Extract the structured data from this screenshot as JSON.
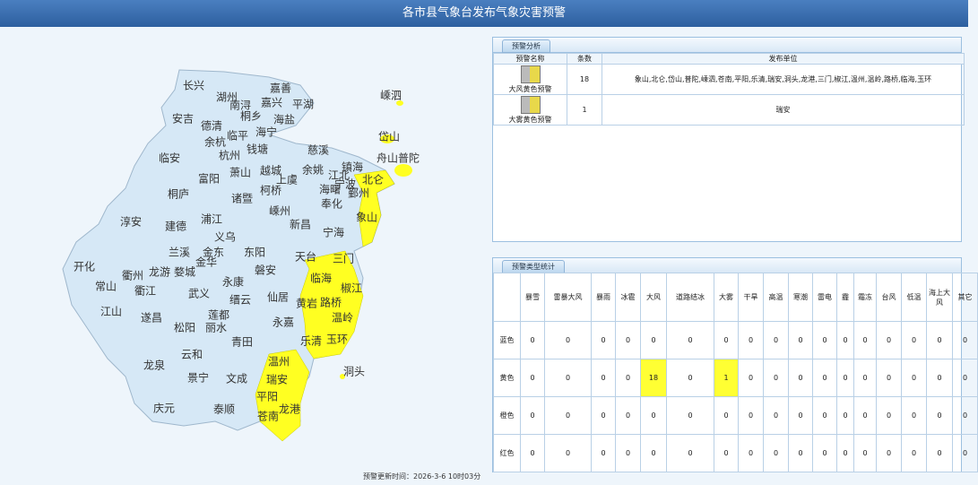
{
  "header": {
    "title": "各市县气象台发布气象灾害预警"
  },
  "map": {
    "labels": [
      "长兴",
      "湖州",
      "嘉善",
      "南浔",
      "嘉兴",
      "平湖",
      "桐乡",
      "海盐",
      "安吉",
      "德清",
      "海宁",
      "余杭",
      "临平",
      "杭州",
      "钱塘",
      "慈溪",
      "嵊泗",
      "岱山",
      "舟山普陀",
      "临安",
      "富阳",
      "萧山",
      "越城",
      "余姚",
      "镇海",
      "江北",
      "宁波",
      "鄞州",
      "北仑",
      "海曙",
      "奉化",
      "上虞",
      "柯桥",
      "诸暨",
      "桐庐",
      "淳安",
      "建德",
      "浦江",
      "嵊州",
      "新昌",
      "象山",
      "宁海",
      "兰溪",
      "义乌",
      "金东",
      "金华",
      "东阳",
      "龙游",
      "婺城",
      "开化",
      "衢州",
      "常山",
      "衢江",
      "武义",
      "永康",
      "磐安",
      "天台",
      "三门",
      "临海",
      "椒江",
      "路桥",
      "缙云",
      "仙居",
      "黄岩",
      "温岭",
      "江山",
      "遂昌",
      "莲都",
      "丽水",
      "松阳",
      "永嘉",
      "乐清",
      "玉环",
      "青田",
      "云和",
      "龙泉",
      "洞头",
      "温州",
      "瑞安",
      "景宁",
      "文成",
      "平阳",
      "龙港",
      "庆元",
      "泰顺",
      "苍南"
    ]
  },
  "analysis": {
    "tab": "预警分析",
    "headers": [
      "预警名称",
      "条数",
      "发布单位"
    ],
    "rows": [
      {
        "name": "大风黄色预警",
        "count": 18,
        "units": "象山,北仑,岱山,普陀,嵊泗,苍南,平阳,乐清,瑞安,洞头,龙港,三门,椒江,温州,温岭,路桥,临海,玉环"
      },
      {
        "name": "大雾黄色预警",
        "count": 1,
        "units": "瑞安"
      }
    ]
  },
  "stats": {
    "tab": "预警类型统计",
    "headers": [
      "暴雪",
      "雷暴大风",
      "暴雨",
      "冰雹",
      "大风",
      "道路结冰",
      "大雾",
      "干旱",
      "高温",
      "寒潮",
      "雷电",
      "霾",
      "霜冻",
      "台风",
      "低温",
      "海上大风",
      "其它"
    ],
    "rows": [
      {
        "label": "蓝色",
        "values": [
          0,
          0,
          0,
          0,
          0,
          0,
          0,
          0,
          0,
          0,
          0,
          0,
          0,
          0,
          0,
          0,
          0
        ]
      },
      {
        "label": "黄色",
        "values": [
          0,
          0,
          0,
          0,
          18,
          0,
          1,
          0,
          0,
          0,
          0,
          0,
          0,
          0,
          0,
          0,
          0
        ]
      },
      {
        "label": "橙色",
        "values": [
          0,
          0,
          0,
          0,
          0,
          0,
          0,
          0,
          0,
          0,
          0,
          0,
          0,
          0,
          0,
          0,
          0
        ]
      },
      {
        "label": "红色",
        "values": [
          0,
          0,
          0,
          0,
          0,
          0,
          0,
          0,
          0,
          0,
          0,
          0,
          0,
          0,
          0,
          0,
          0
        ]
      }
    ]
  },
  "footer": {
    "update_time": "预警更新时间：2026-3-6 10时03分"
  }
}
